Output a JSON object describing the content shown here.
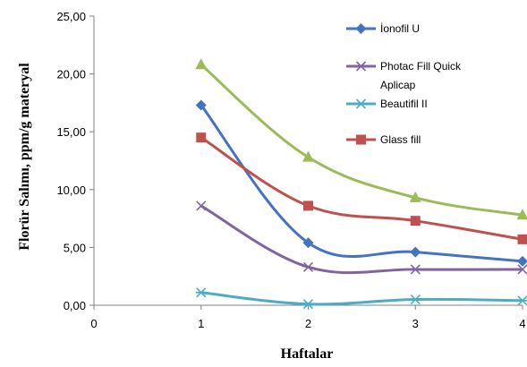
{
  "chart_data": {
    "type": "line",
    "xlabel": "Haftalar",
    "ylabel": "Florür  Salımı, ppm/g materyal",
    "xlim": [
      0,
      4
    ],
    "ylim": [
      0,
      25
    ],
    "x_ticks": [
      "0",
      "1",
      "2",
      "3",
      "4"
    ],
    "y_ticks": [
      "0,00",
      "5,00",
      "10,00",
      "15,00",
      "20,00",
      "25,00"
    ],
    "grid": false,
    "legend_position": "top-right",
    "x": [
      1,
      2,
      3,
      4
    ],
    "series": [
      {
        "name": "İonofil U",
        "values": [
          17.3,
          5.4,
          4.6,
          3.8
        ],
        "color": "#4472C4",
        "marker": "diamond"
      },
      {
        "name": "Photac Fill Quick Aplicap",
        "values": [
          8.6,
          3.3,
          3.1,
          3.1
        ],
        "color": "#8064A2",
        "marker": "x"
      },
      {
        "name": "Beautifil II",
        "values": [
          1.1,
          0.1,
          0.5,
          0.4
        ],
        "color": "#4BACC6",
        "marker": "star"
      },
      {
        "name": "Glass fill",
        "values": [
          14.5,
          8.6,
          7.3,
          5.7
        ],
        "color": "#C0504D",
        "marker": "square"
      },
      {
        "name": "",
        "values": [
          20.8,
          12.8,
          9.3,
          7.8
        ],
        "color": "#9BBB59",
        "marker": "triangle"
      }
    ],
    "legend": [
      {
        "label_lines": [
          "İonofil U"
        ],
        "series_index": 0
      },
      {
        "label_lines": [
          "Photac Fill Quick",
          "Aplicap"
        ],
        "series_index": 1
      },
      {
        "label_lines": [
          "Beautifil II"
        ],
        "series_index": 2
      },
      {
        "label_lines": [
          "Glass fill"
        ],
        "series_index": 3
      }
    ]
  }
}
